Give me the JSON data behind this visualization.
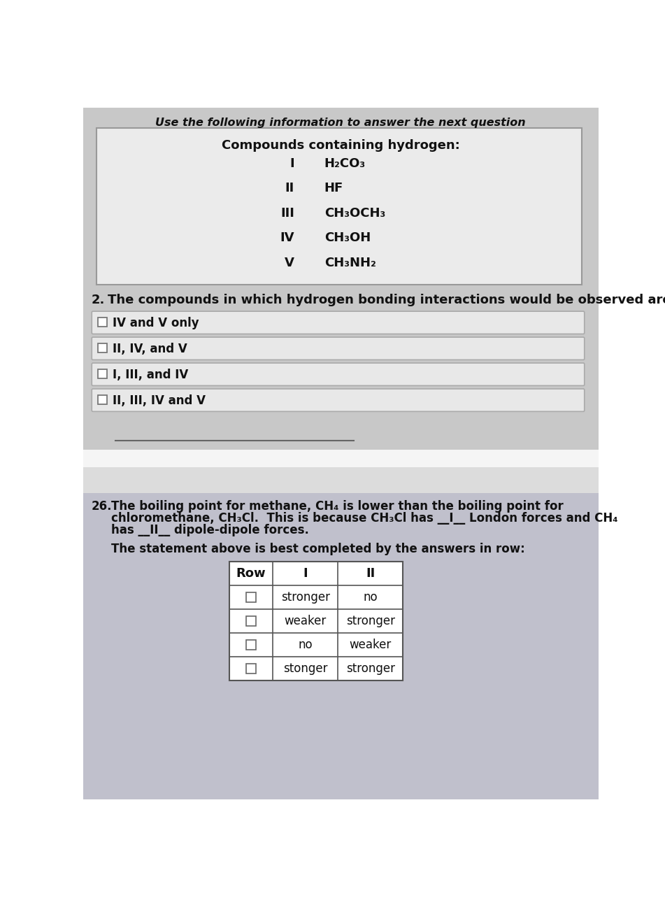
{
  "bg_color_top": "#c8c8c8",
  "bg_color_bottom": "#c0c0cc",
  "bg_white_box": "#f0f0f0",
  "option_box_color": "#e8e8e8",
  "option_box_border": "#aaaaaa",
  "header_italic": "Use the following information to answer the next question",
  "box_title": "Compounds containing hydrogen:",
  "compounds": [
    [
      "I",
      "H₂CO₃"
    ],
    [
      "II",
      "HF"
    ],
    [
      "III",
      "CH₃OCH₃"
    ],
    [
      "IV",
      "CH₃OH"
    ],
    [
      "V",
      "CH₃NH₂"
    ]
  ],
  "q2_label": "2.",
  "q2_text": "The compounds in which hydrogen bonding interactions would be observed are",
  "q2_options": [
    "IV and V only",
    "II, IV, and V",
    "I, III, and IV",
    "II, III, IV and V"
  ],
  "q26_label": "26.",
  "q26_text_line1": "The boiling point for methane, CH₄ is lower than the boiling point for",
  "q26_text_line2": "chloromethane, CH₃Cl.  This is because CH₃Cl has __I__ London forces and CH₄",
  "q26_text_line3": "has __II__ dipole-dipole forces.",
  "q26_statement": "The statement above is best completed by the answers in row:",
  "table_headers": [
    "Row",
    "I",
    "II"
  ],
  "table_rows": [
    [
      "",
      "stronger",
      "no"
    ],
    [
      "",
      "weaker",
      "stronger"
    ],
    [
      "",
      "no",
      "weaker"
    ],
    [
      "",
      "stonger",
      "stronger"
    ]
  ],
  "nav_bar_color": "#dcdcdc",
  "separator_line_color": "#666666",
  "white_gap_color": "#f5f5f5"
}
